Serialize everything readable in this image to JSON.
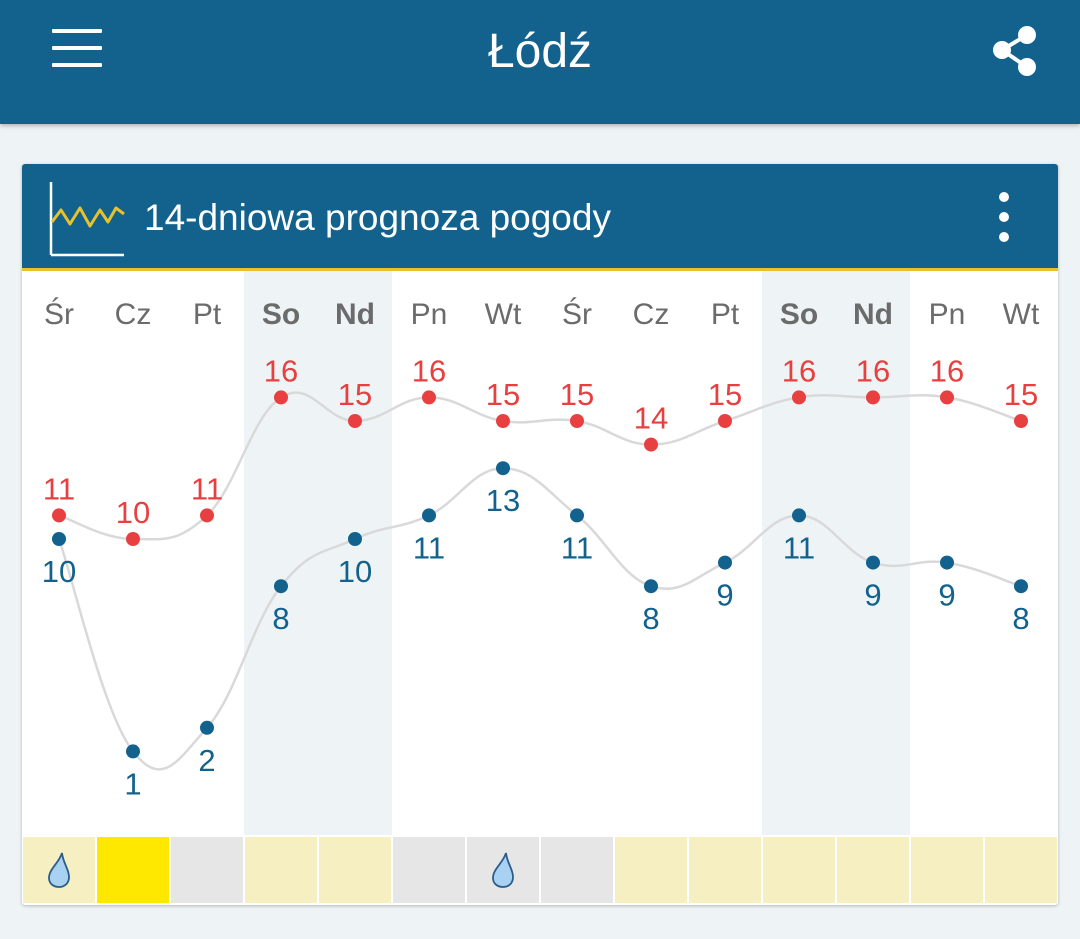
{
  "app_title": "Łódź",
  "icons": {
    "menu": "hamburger-menu-icon",
    "share": "share-icon",
    "chart": "line-chart-icon",
    "more": "more-vertical-icon",
    "rain": "raindrop-icon"
  },
  "card": {
    "title": "14-dniowa prognoza pogody"
  },
  "colors": {
    "appbar": "#12628d",
    "accent_line": "#e8c22a",
    "max_temp": "#e84040",
    "min_temp": "#12628d",
    "weekend_bg": "#eef4f6",
    "day_label": "#6b6b6b",
    "cell_sun": "#f6efc2",
    "cell_yellow": "#ffe800",
    "cell_cloud": "#e6e6e6"
  },
  "chart_data": {
    "type": "line",
    "categories": [
      "Śr",
      "Cz",
      "Pt",
      "So",
      "Nd",
      "Pn",
      "Wt",
      "Śr",
      "Cz",
      "Pt",
      "So",
      "Nd",
      "Pn",
      "Wt"
    ],
    "weekend": [
      false,
      false,
      false,
      true,
      true,
      false,
      false,
      false,
      false,
      false,
      true,
      true,
      false,
      false
    ],
    "series": [
      {
        "values": [
          11,
          10,
          11,
          16,
          15,
          16,
          15,
          15,
          14,
          15,
          16,
          16,
          16,
          15
        ]
      },
      {
        "values": [
          10,
          1,
          2,
          8,
          10,
          11,
          13,
          11,
          8,
          9,
          11,
          9,
          9,
          8
        ]
      }
    ],
    "ylim": [
      0,
      17
    ]
  },
  "conditions": [
    {
      "type": "sun",
      "rain": true
    },
    {
      "type": "yellow",
      "rain": false
    },
    {
      "type": "cloud",
      "rain": false
    },
    {
      "type": "sun",
      "rain": false
    },
    {
      "type": "sun",
      "rain": false
    },
    {
      "type": "cloud",
      "rain": false
    },
    {
      "type": "cloud",
      "rain": true
    },
    {
      "type": "cloud",
      "rain": false
    },
    {
      "type": "sun",
      "rain": false
    },
    {
      "type": "sun",
      "rain": false
    },
    {
      "type": "sun",
      "rain": false
    },
    {
      "type": "sun",
      "rain": false
    },
    {
      "type": "sun",
      "rain": false
    },
    {
      "type": "sun",
      "rain": false
    }
  ]
}
